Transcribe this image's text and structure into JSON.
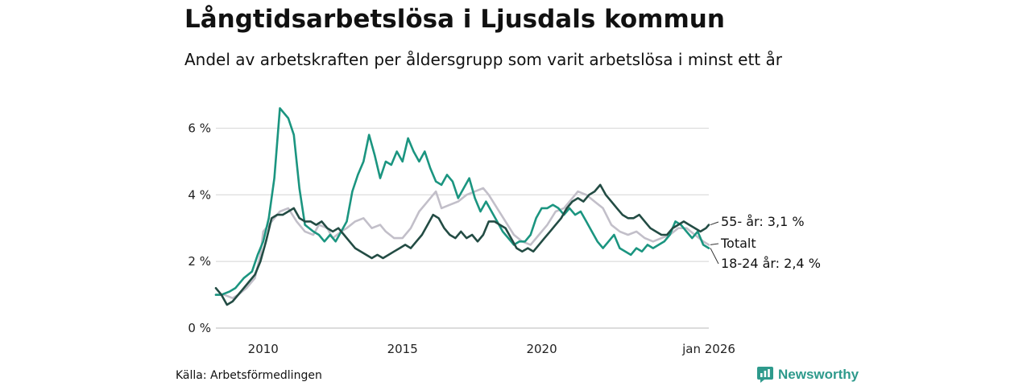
{
  "header": {
    "title": "Långtidsarbetslösa i Ljusdals kommun",
    "subtitle": "Andel av arbetskraften per åldersgrupp som varit arbetslösa i minst ett år"
  },
  "footer": {
    "source": "Källa: Arbetsförmedlingen",
    "brand": "Newsworthy"
  },
  "chart_data": {
    "type": "line",
    "title": "Långtidsarbetslösa i Ljusdals kommun",
    "subtitle": "Andel av arbetskraften per åldersgrupp som varit arbetslösa i minst ett år",
    "xlabel": "",
    "ylabel": "",
    "xlim": [
      2008.3,
      2026.0
    ],
    "ylim": [
      0,
      7
    ],
    "grid": true,
    "y_ticks": [
      {
        "value": 0,
        "label": "0 %"
      },
      {
        "value": 2,
        "label": "2 %"
      },
      {
        "value": 4,
        "label": "4 %"
      },
      {
        "value": 6,
        "label": "6 %"
      }
    ],
    "x_ticks": [
      {
        "value": 2010,
        "label": "2010"
      },
      {
        "value": 2015,
        "label": "2015"
      },
      {
        "value": 2020,
        "label": "2020"
      },
      {
        "value": 2026,
        "label": "jan 2026"
      }
    ],
    "series": [
      {
        "name": "Totalt",
        "end_label": "Totalt",
        "color": "#c2bfc9",
        "points": [
          [
            2008.3,
            1.0
          ],
          [
            2008.6,
            1.0
          ],
          [
            2008.9,
            0.9
          ],
          [
            2009.1,
            1.0
          ],
          [
            2009.4,
            1.2
          ],
          [
            2009.7,
            1.5
          ],
          [
            2009.9,
            2.2
          ],
          [
            2010.0,
            2.9
          ],
          [
            2010.3,
            3.2
          ],
          [
            2010.6,
            3.5
          ],
          [
            2010.9,
            3.6
          ],
          [
            2011.2,
            3.2
          ],
          [
            2011.5,
            2.9
          ],
          [
            2011.8,
            2.8
          ],
          [
            2012.0,
            3.1
          ],
          [
            2012.3,
            3.0
          ],
          [
            2012.5,
            2.7
          ],
          [
            2012.8,
            2.9
          ],
          [
            2013.0,
            3.0
          ],
          [
            2013.3,
            3.2
          ],
          [
            2013.6,
            3.3
          ],
          [
            2013.9,
            3.0
          ],
          [
            2014.2,
            3.1
          ],
          [
            2014.4,
            2.9
          ],
          [
            2014.7,
            2.7
          ],
          [
            2015.0,
            2.7
          ],
          [
            2015.3,
            3.0
          ],
          [
            2015.6,
            3.5
          ],
          [
            2015.9,
            3.8
          ],
          [
            2016.2,
            4.1
          ],
          [
            2016.4,
            3.6
          ],
          [
            2016.7,
            3.7
          ],
          [
            2017.0,
            3.8
          ],
          [
            2017.3,
            4.0
          ],
          [
            2017.6,
            4.1
          ],
          [
            2017.9,
            4.2
          ],
          [
            2018.1,
            4.0
          ],
          [
            2018.4,
            3.6
          ],
          [
            2018.7,
            3.2
          ],
          [
            2019.0,
            2.8
          ],
          [
            2019.3,
            2.6
          ],
          [
            2019.6,
            2.5
          ],
          [
            2019.9,
            2.8
          ],
          [
            2020.2,
            3.1
          ],
          [
            2020.5,
            3.5
          ],
          [
            2020.8,
            3.6
          ],
          [
            2021.1,
            3.9
          ],
          [
            2021.3,
            4.1
          ],
          [
            2021.6,
            4.0
          ],
          [
            2021.9,
            3.8
          ],
          [
            2022.2,
            3.6
          ],
          [
            2022.5,
            3.1
          ],
          [
            2022.8,
            2.9
          ],
          [
            2023.1,
            2.8
          ],
          [
            2023.4,
            2.9
          ],
          [
            2023.7,
            2.7
          ],
          [
            2024.0,
            2.6
          ],
          [
            2024.3,
            2.7
          ],
          [
            2024.6,
            2.8
          ],
          [
            2024.9,
            3.0
          ],
          [
            2025.2,
            3.0
          ],
          [
            2025.5,
            2.8
          ],
          [
            2025.8,
            2.6
          ],
          [
            2026.0,
            2.5
          ]
        ]
      },
      {
        "name": "18-24 år",
        "end_label": "18-24 år: 2,4 %",
        "color": "#1b9580",
        "points": [
          [
            2008.3,
            1.0
          ],
          [
            2008.5,
            1.0
          ],
          [
            2008.8,
            1.1
          ],
          [
            2009.0,
            1.2
          ],
          [
            2009.3,
            1.5
          ],
          [
            2009.6,
            1.7
          ],
          [
            2009.8,
            2.2
          ],
          [
            2010.0,
            2.6
          ],
          [
            2010.2,
            3.3
          ],
          [
            2010.4,
            4.5
          ],
          [
            2010.6,
            6.6
          ],
          [
            2010.9,
            6.3
          ],
          [
            2011.1,
            5.8
          ],
          [
            2011.3,
            4.2
          ],
          [
            2011.5,
            3.1
          ],
          [
            2011.8,
            2.9
          ],
          [
            2012.0,
            2.8
          ],
          [
            2012.2,
            2.6
          ],
          [
            2012.4,
            2.8
          ],
          [
            2012.6,
            2.6
          ],
          [
            2012.8,
            2.9
          ],
          [
            2013.0,
            3.2
          ],
          [
            2013.2,
            4.1
          ],
          [
            2013.4,
            4.6
          ],
          [
            2013.6,
            5.0
          ],
          [
            2013.8,
            5.8
          ],
          [
            2014.0,
            5.2
          ],
          [
            2014.2,
            4.5
          ],
          [
            2014.4,
            5.0
          ],
          [
            2014.6,
            4.9
          ],
          [
            2014.8,
            5.3
          ],
          [
            2015.0,
            5.0
          ],
          [
            2015.2,
            5.7
          ],
          [
            2015.4,
            5.3
          ],
          [
            2015.6,
            5.0
          ],
          [
            2015.8,
            5.3
          ],
          [
            2016.0,
            4.8
          ],
          [
            2016.2,
            4.4
          ],
          [
            2016.4,
            4.3
          ],
          [
            2016.6,
            4.6
          ],
          [
            2016.8,
            4.4
          ],
          [
            2017.0,
            3.9
          ],
          [
            2017.2,
            4.2
          ],
          [
            2017.4,
            4.5
          ],
          [
            2017.6,
            3.9
          ],
          [
            2017.8,
            3.5
          ],
          [
            2018.0,
            3.8
          ],
          [
            2018.2,
            3.5
          ],
          [
            2018.4,
            3.2
          ],
          [
            2018.6,
            2.9
          ],
          [
            2018.8,
            2.7
          ],
          [
            2019.0,
            2.5
          ],
          [
            2019.2,
            2.6
          ],
          [
            2019.4,
            2.6
          ],
          [
            2019.6,
            2.8
          ],
          [
            2019.8,
            3.3
          ],
          [
            2020.0,
            3.6
          ],
          [
            2020.2,
            3.6
          ],
          [
            2020.4,
            3.7
          ],
          [
            2020.6,
            3.6
          ],
          [
            2020.8,
            3.4
          ],
          [
            2021.0,
            3.6
          ],
          [
            2021.2,
            3.4
          ],
          [
            2021.4,
            3.5
          ],
          [
            2021.6,
            3.2
          ],
          [
            2021.8,
            2.9
          ],
          [
            2022.0,
            2.6
          ],
          [
            2022.2,
            2.4
          ],
          [
            2022.4,
            2.6
          ],
          [
            2022.6,
            2.8
          ],
          [
            2022.8,
            2.4
          ],
          [
            2023.0,
            2.3
          ],
          [
            2023.2,
            2.2
          ],
          [
            2023.4,
            2.4
          ],
          [
            2023.6,
            2.3
          ],
          [
            2023.8,
            2.5
          ],
          [
            2024.0,
            2.4
          ],
          [
            2024.2,
            2.5
          ],
          [
            2024.4,
            2.6
          ],
          [
            2024.6,
            2.8
          ],
          [
            2024.8,
            3.2
          ],
          [
            2025.0,
            3.1
          ],
          [
            2025.2,
            2.9
          ],
          [
            2025.4,
            2.7
          ],
          [
            2025.6,
            2.9
          ],
          [
            2025.8,
            2.5
          ],
          [
            2026.0,
            2.4
          ]
        ]
      },
      {
        "name": "55- år",
        "end_label": "55- år: 3,1 %",
        "color": "#234c44",
        "points": [
          [
            2008.3,
            1.2
          ],
          [
            2008.5,
            1.0
          ],
          [
            2008.7,
            0.7
          ],
          [
            2008.9,
            0.8
          ],
          [
            2009.1,
            1.0
          ],
          [
            2009.3,
            1.2
          ],
          [
            2009.5,
            1.4
          ],
          [
            2009.7,
            1.6
          ],
          [
            2009.9,
            2.0
          ],
          [
            2010.1,
            2.6
          ],
          [
            2010.3,
            3.3
          ],
          [
            2010.5,
            3.4
          ],
          [
            2010.7,
            3.4
          ],
          [
            2010.9,
            3.5
          ],
          [
            2011.1,
            3.6
          ],
          [
            2011.3,
            3.3
          ],
          [
            2011.5,
            3.2
          ],
          [
            2011.7,
            3.2
          ],
          [
            2011.9,
            3.1
          ],
          [
            2012.1,
            3.2
          ],
          [
            2012.3,
            3.0
          ],
          [
            2012.5,
            2.9
          ],
          [
            2012.7,
            3.0
          ],
          [
            2012.9,
            2.8
          ],
          [
            2013.1,
            2.6
          ],
          [
            2013.3,
            2.4
          ],
          [
            2013.5,
            2.3
          ],
          [
            2013.7,
            2.2
          ],
          [
            2013.9,
            2.1
          ],
          [
            2014.1,
            2.2
          ],
          [
            2014.3,
            2.1
          ],
          [
            2014.5,
            2.2
          ],
          [
            2014.7,
            2.3
          ],
          [
            2014.9,
            2.4
          ],
          [
            2015.1,
            2.5
          ],
          [
            2015.3,
            2.4
          ],
          [
            2015.5,
            2.6
          ],
          [
            2015.7,
            2.8
          ],
          [
            2015.9,
            3.1
          ],
          [
            2016.1,
            3.4
          ],
          [
            2016.3,
            3.3
          ],
          [
            2016.5,
            3.0
          ],
          [
            2016.7,
            2.8
          ],
          [
            2016.9,
            2.7
          ],
          [
            2017.1,
            2.9
          ],
          [
            2017.3,
            2.7
          ],
          [
            2017.5,
            2.8
          ],
          [
            2017.7,
            2.6
          ],
          [
            2017.9,
            2.8
          ],
          [
            2018.1,
            3.2
          ],
          [
            2018.3,
            3.2
          ],
          [
            2018.5,
            3.1
          ],
          [
            2018.7,
            3.0
          ],
          [
            2018.9,
            2.7
          ],
          [
            2019.1,
            2.4
          ],
          [
            2019.3,
            2.3
          ],
          [
            2019.5,
            2.4
          ],
          [
            2019.7,
            2.3
          ],
          [
            2019.9,
            2.5
          ],
          [
            2020.1,
            2.7
          ],
          [
            2020.3,
            2.9
          ],
          [
            2020.5,
            3.1
          ],
          [
            2020.7,
            3.3
          ],
          [
            2020.9,
            3.6
          ],
          [
            2021.1,
            3.8
          ],
          [
            2021.3,
            3.9
          ],
          [
            2021.5,
            3.8
          ],
          [
            2021.7,
            4.0
          ],
          [
            2021.9,
            4.1
          ],
          [
            2022.1,
            4.3
          ],
          [
            2022.3,
            4.0
          ],
          [
            2022.5,
            3.8
          ],
          [
            2022.7,
            3.6
          ],
          [
            2022.9,
            3.4
          ],
          [
            2023.1,
            3.3
          ],
          [
            2023.3,
            3.3
          ],
          [
            2023.5,
            3.4
          ],
          [
            2023.7,
            3.2
          ],
          [
            2023.9,
            3.0
          ],
          [
            2024.1,
            2.9
          ],
          [
            2024.3,
            2.8
          ],
          [
            2024.5,
            2.8
          ],
          [
            2024.7,
            3.0
          ],
          [
            2024.9,
            3.1
          ],
          [
            2025.1,
            3.2
          ],
          [
            2025.3,
            3.1
          ],
          [
            2025.5,
            3.0
          ],
          [
            2025.7,
            2.9
          ],
          [
            2025.9,
            3.0
          ],
          [
            2026.0,
            3.1
          ]
        ]
      }
    ]
  }
}
